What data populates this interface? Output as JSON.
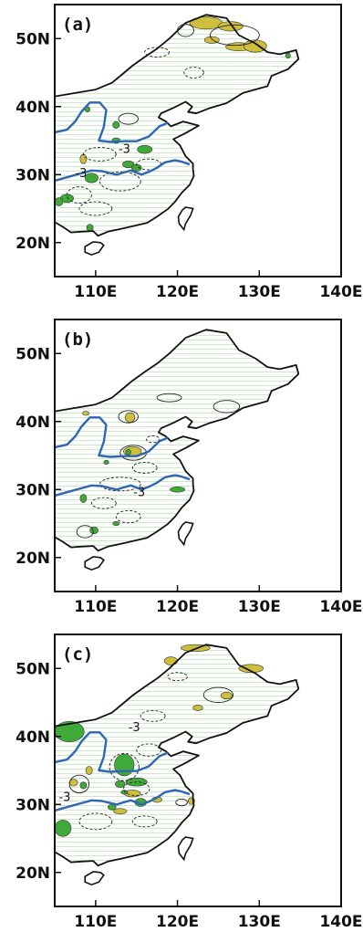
{
  "panels": [
    {
      "label": "(a)",
      "contour_labels": [
        "-3",
        "-3"
      ]
    },
    {
      "label": "(b)",
      "contour_labels": [
        "-3"
      ]
    },
    {
      "label": "(c)",
      "contour_labels": [
        "-3",
        "-3"
      ]
    }
  ],
  "axes": {
    "x_ticks": [
      "110E",
      "120E",
      "130E",
      "140E"
    ],
    "y_ticks": [
      "50N",
      "40N",
      "30N",
      "20N"
    ]
  },
  "colors": {
    "frame": "#111111",
    "coast": "#111111",
    "river": "#2f66b3",
    "shade_positive": "#cdbf3b",
    "shade_negative": "#3faa3a",
    "hatch": "#a8d8a0"
  }
}
